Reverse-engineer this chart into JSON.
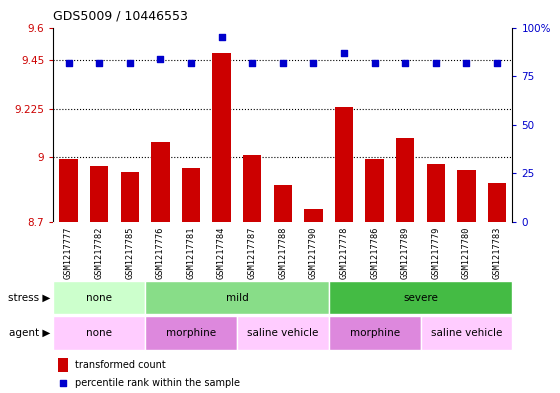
{
  "title": "GDS5009 / 10446553",
  "samples": [
    "GSM1217777",
    "GSM1217782",
    "GSM1217785",
    "GSM1217776",
    "GSM1217781",
    "GSM1217784",
    "GSM1217787",
    "GSM1217788",
    "GSM1217790",
    "GSM1217778",
    "GSM1217786",
    "GSM1217789",
    "GSM1217779",
    "GSM1217780",
    "GSM1217783"
  ],
  "bar_values": [
    8.99,
    8.96,
    8.93,
    9.07,
    8.95,
    9.48,
    9.01,
    8.87,
    8.76,
    9.23,
    8.99,
    9.09,
    8.97,
    8.94,
    8.88
  ],
  "dot_values": [
    82,
    82,
    82,
    84,
    82,
    95,
    82,
    82,
    82,
    87,
    82,
    82,
    82,
    82,
    82
  ],
  "ylim_left": [
    8.7,
    9.6
  ],
  "ylim_right": [
    0,
    100
  ],
  "yticks_left": [
    8.7,
    9.0,
    9.225,
    9.45,
    9.6
  ],
  "ytick_labels_left": [
    "8.7",
    "9",
    "9.225",
    "9.45",
    "9.6"
  ],
  "yticks_right": [
    0,
    25,
    50,
    75,
    100
  ],
  "ytick_labels_right": [
    "0",
    "25",
    "50",
    "75",
    "100%"
  ],
  "hlines": [
    9.0,
    9.225,
    9.45
  ],
  "bar_color": "#cc0000",
  "dot_color": "#0000cc",
  "bar_width": 0.6,
  "stress_groups": [
    {
      "label": "none",
      "start": 0,
      "end": 3,
      "color": "#ccffcc"
    },
    {
      "label": "mild",
      "start": 3,
      "end": 9,
      "color": "#88dd88"
    },
    {
      "label": "severe",
      "start": 9,
      "end": 15,
      "color": "#44bb44"
    }
  ],
  "agent_groups": [
    {
      "label": "none",
      "start": 0,
      "end": 3,
      "color": "#ffccff"
    },
    {
      "label": "morphine",
      "start": 3,
      "end": 6,
      "color": "#dd88dd"
    },
    {
      "label": "saline vehicle",
      "start": 6,
      "end": 9,
      "color": "#ffccff"
    },
    {
      "label": "morphine",
      "start": 9,
      "end": 12,
      "color": "#dd88dd"
    },
    {
      "label": "saline vehicle",
      "start": 12,
      "end": 15,
      "color": "#ffccff"
    }
  ],
  "legend_bar_label": "transformed count",
  "legend_dot_label": "percentile rank within the sample",
  "left_axis_color": "#cc0000",
  "right_axis_color": "#0000cc",
  "stress_label": "stress",
  "agent_label": "agent",
  "background_color": "#ffffff",
  "tick_bg_color": "#cccccc",
  "arrow_color": "#aaaaaa"
}
